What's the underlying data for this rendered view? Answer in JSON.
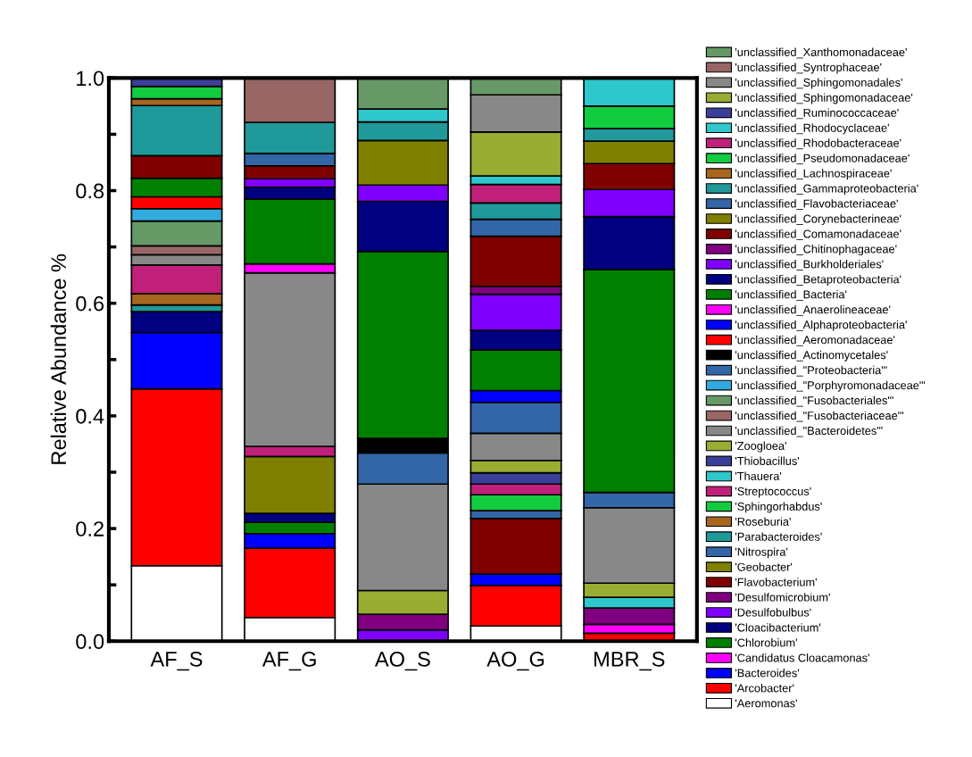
{
  "chart_data": {
    "type": "bar",
    "stacked": true,
    "ylabel": "Relative Abundance %",
    "categories": [
      "AF_S",
      "AF_G",
      "AO_S",
      "AO_G",
      "MBR_S"
    ],
    "ylim": [
      0,
      1.0
    ],
    "yticks": [
      {
        "value": 0,
        "label": "0.0"
      },
      {
        "value": 0.1,
        "label": null
      },
      {
        "value": 0.2,
        "label": "0.2"
      },
      {
        "value": 0.3,
        "label": null
      },
      {
        "value": 0.4,
        "label": "0.4"
      },
      {
        "value": 0.5,
        "label": null
      },
      {
        "value": 0.6,
        "label": "0.6"
      },
      {
        "value": 0.7,
        "label": null
      },
      {
        "value": 0.8,
        "label": "0.8"
      },
      {
        "value": 0.9,
        "label": null
      },
      {
        "value": 1.0,
        "label": "1.0"
      }
    ],
    "grid": false,
    "legend": "right",
    "series": [
      {
        "name": "'Aeromonas'",
        "color": "#ffffff",
        "values": [
          0.134,
          0.042,
          null,
          0.027,
          null
        ]
      },
      {
        "name": "'Arcobacter'",
        "color": "#ff0000",
        "values": [
          0.314,
          0.123,
          null,
          0.072,
          0.014
        ]
      },
      {
        "name": "'Bacteroides'",
        "color": "#0000ff",
        "values": [
          0.1,
          0.026,
          null,
          0.02,
          null
        ]
      },
      {
        "name": "'Candidatus Cloacamonas'",
        "color": "#ff00ff",
        "values": [
          null,
          null,
          null,
          null,
          0.016
        ]
      },
      {
        "name": "'Chlorobium'",
        "color": "#008000",
        "values": [
          null,
          0.02,
          null,
          null,
          null
        ]
      },
      {
        "name": "'Cloacibacterium'",
        "color": "#000080",
        "values": [
          0.037,
          0.016,
          null,
          null,
          null
        ]
      },
      {
        "name": "'Desulfobulbus'",
        "color": "#8000ff",
        "values": [
          null,
          null,
          0.02,
          null,
          null
        ]
      },
      {
        "name": "'Desulfomicrobium'",
        "color": "#800080",
        "values": [
          null,
          null,
          0.028,
          null,
          0.029
        ]
      },
      {
        "name": "'Flavobacterium'",
        "color": "#800000",
        "values": [
          null,
          null,
          null,
          0.099,
          null
        ]
      },
      {
        "name": "'Geobacter'",
        "color": "#808000",
        "values": [
          null,
          0.101,
          null,
          null,
          null
        ]
      },
      {
        "name": "'Nitrospira'",
        "color": "#3366a6",
        "values": [
          null,
          null,
          null,
          0.014,
          null
        ]
      },
      {
        "name": "'Parabacteroides'",
        "color": "#1f9999",
        "values": [
          0.012,
          null,
          null,
          null,
          null
        ]
      },
      {
        "name": "'Roseburia'",
        "color": "#a8661f",
        "values": [
          0.02,
          null,
          null,
          null,
          null
        ]
      },
      {
        "name": "'Sphingorhabdus'",
        "color": "#12cc40",
        "values": [
          null,
          null,
          null,
          0.028,
          null
        ]
      },
      {
        "name": "'Streptococcus'",
        "color": "#c0207a",
        "values": [
          0.051,
          0.018,
          null,
          0.019,
          null
        ]
      },
      {
        "name": "'Thauera'",
        "color": "#2ec8cc",
        "values": [
          null,
          null,
          null,
          null,
          0.019
        ]
      },
      {
        "name": "'Thiobacillus'",
        "color": "#3a3f99",
        "values": [
          null,
          null,
          null,
          0.02,
          null
        ]
      },
      {
        "name": "'Zoogloea'",
        "color": "#99ad33",
        "values": [
          null,
          null,
          0.042,
          0.022,
          0.025
        ]
      },
      {
        "name": "'unclassified_\"Bacteroidetes\"'",
        "color": "#888888",
        "values": [
          0.018,
          0.308,
          0.189,
          0.048,
          0.134
        ]
      },
      {
        "name": "'unclassified_\"Fusobacteriaceae\"'",
        "color": "#996666",
        "values": [
          0.016,
          null,
          null,
          null,
          null
        ]
      },
      {
        "name": "'unclassified_\"Fusobacteriales\"'",
        "color": "#669966",
        "values": [
          0.044,
          null,
          null,
          null,
          null
        ]
      },
      {
        "name": "'unclassified_\"Porphyromonadaceae\"'",
        "color": "#33aadd",
        "values": [
          0.022,
          null,
          null,
          null,
          null
        ]
      },
      {
        "name": "'unclassified_\"Proteobacteria\"'",
        "color": "#3366a6",
        "values": [
          null,
          null,
          0.055,
          0.055,
          0.027
        ]
      },
      {
        "name": "'unclassified_Actinomycetales'",
        "color": "#000000",
        "values": [
          null,
          null,
          0.026,
          null,
          null
        ]
      },
      {
        "name": "'unclassified_Aeromonadaceae'",
        "color": "#ff0000",
        "values": [
          0.021,
          null,
          null,
          null,
          null
        ]
      },
      {
        "name": "'unclassified_Alphaproteobacteria'",
        "color": "#0000ff",
        "values": [
          null,
          null,
          null,
          0.021,
          null
        ]
      },
      {
        "name": "'unclassified_Anaerolineaceae'",
        "color": "#ff00ff",
        "values": [
          null,
          0.016,
          null,
          null,
          null
        ]
      },
      {
        "name": "'unclassified_Bacteria'",
        "color": "#008000",
        "values": [
          0.033,
          0.115,
          0.332,
          0.072,
          0.396
        ]
      },
      {
        "name": "'unclassified_Betaproteobacteria'",
        "color": "#000080",
        "values": [
          null,
          0.021,
          0.089,
          0.035,
          0.094
        ]
      },
      {
        "name": "'unclassified_Burkholderiales'",
        "color": "#8000ff",
        "values": [
          null,
          0.015,
          0.029,
          0.064,
          0.048
        ]
      },
      {
        "name": "'unclassified_Chitinophagaceae'",
        "color": "#800080",
        "values": [
          null,
          null,
          null,
          0.014,
          null
        ]
      },
      {
        "name": "'unclassified_Comamonadaceae'",
        "color": "#800000",
        "values": [
          0.04,
          0.023,
          null,
          0.089,
          0.046
        ]
      },
      {
        "name": "'unclassified_Corynebacterineae'",
        "color": "#808000",
        "values": [
          null,
          null,
          0.079,
          null,
          0.04
        ]
      },
      {
        "name": "'unclassified_Flavobacteriaceae'",
        "color": "#3366a6",
        "values": [
          null,
          0.022,
          null,
          0.03,
          null
        ]
      },
      {
        "name": "'unclassified_Gammaproteobacteria'",
        "color": "#1f9999",
        "values": [
          0.089,
          0.055,
          0.033,
          0.029,
          0.022
        ]
      },
      {
        "name": "'unclassified_Lachnospiraceae'",
        "color": "#a8661f",
        "values": [
          0.012,
          null,
          null,
          null,
          null
        ]
      },
      {
        "name": "'unclassified_Pseudomonadaceae'",
        "color": "#12cc40",
        "values": [
          0.022,
          null,
          null,
          null,
          0.04
        ]
      },
      {
        "name": "'unclassified_Rhodobacteraceae'",
        "color": "#c0207a",
        "values": [
          null,
          null,
          null,
          0.033,
          null
        ]
      },
      {
        "name": "'unclassified_Rhodocyclaceae'",
        "color": "#2ec8cc",
        "values": [
          null,
          null,
          0.023,
          0.015,
          0.049
        ]
      },
      {
        "name": "'unclassified_Ruminococcaceae'",
        "color": "#3a3f99",
        "values": [
          0.014,
          null,
          null,
          null,
          null
        ]
      },
      {
        "name": "'unclassified_Sphingomonadaceae'",
        "color": "#99ad33",
        "values": [
          null,
          null,
          null,
          0.078,
          null
        ]
      },
      {
        "name": "'unclassified_Sphingomonadales'",
        "color": "#888888",
        "values": [
          null,
          null,
          null,
          0.066,
          null
        ]
      },
      {
        "name": "'unclassified_Syntrophaceae'",
        "color": "#996666",
        "values": [
          null,
          0.079,
          null,
          null,
          null
        ]
      },
      {
        "name": "'unclassified_Xanthomonadaceae'",
        "color": "#669966",
        "values": [
          null,
          null,
          0.056,
          0.031,
          null
        ]
      }
    ]
  }
}
